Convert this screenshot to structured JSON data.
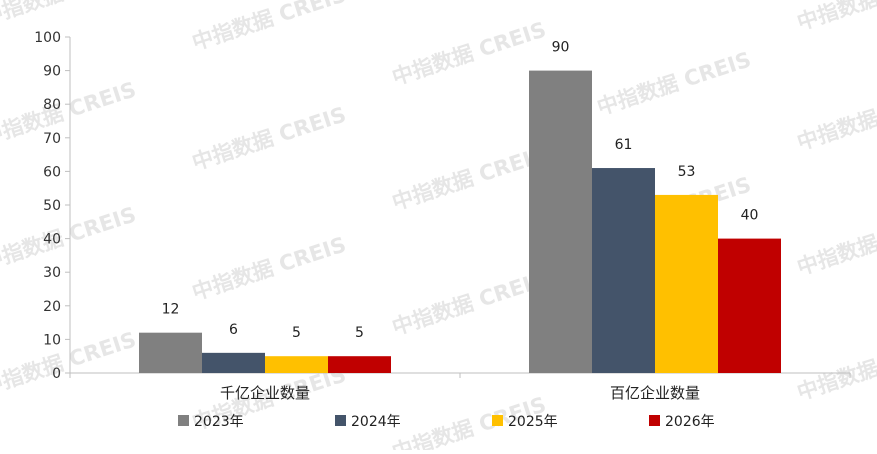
{
  "watermark": {
    "text": "中指数据 CREIS"
  },
  "chart_data": {
    "type": "bar",
    "categories": [
      "千亿企业数量",
      "百亿企业数量"
    ],
    "series": [
      {
        "name": "2023年",
        "values": [
          12,
          90
        ],
        "color": "#808080"
      },
      {
        "name": "2024年",
        "values": [
          6,
          61
        ],
        "color": "#44546a"
      },
      {
        "name": "2025年",
        "values": [
          5,
          53
        ],
        "color": "#ffc000"
      },
      {
        "name": "2026年",
        "values": [
          5,
          40
        ],
        "color": "#c00000"
      }
    ],
    "ylim": [
      0,
      100
    ],
    "yticks": [
      0,
      10,
      20,
      30,
      40,
      50,
      60,
      70,
      80,
      90,
      100
    ],
    "grid": false,
    "legend_position": "bottom",
    "data_labels": true
  }
}
